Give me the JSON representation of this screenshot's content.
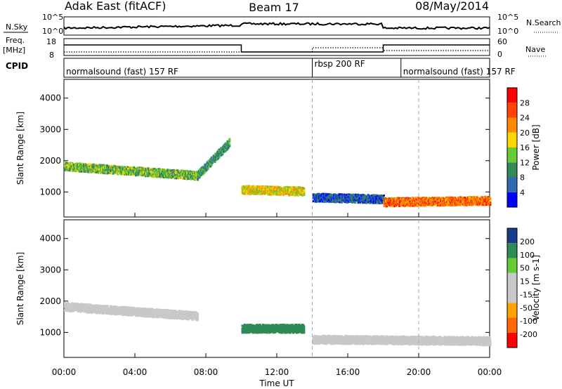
{
  "header": {
    "station": "Adak East (fitACF)",
    "beam": "Beam 17",
    "date": "08/May/2014"
  },
  "strip_labels": {
    "nsky": "N.Sky",
    "nsearch": "N.Search",
    "freq": "Freq.",
    "freq_unit": "[MHz]",
    "nave": "Nave",
    "cpid": "CPID",
    "nsky_ticks": [
      "10^5",
      "10^0"
    ],
    "nsearch_ticks": [
      "10^5",
      "10^0"
    ],
    "freq_ticks": [
      "18",
      "8"
    ],
    "nave_ticks": [
      "60",
      "0"
    ]
  },
  "cpid_segments": [
    {
      "label": "normalsound (fast) 157 RF",
      "start_h": 0,
      "end_h": 14
    },
    {
      "label": "rbsp 200 RF",
      "start_h": 14,
      "end_h": 19
    },
    {
      "label": "normalsound (fast) 157 RF",
      "start_h": 19,
      "end_h": 24
    }
  ],
  "colors": {
    "power_scale": [
      "#0000ff",
      "#2f6ab0",
      "#2e8b57",
      "#66cc33",
      "#ffd700",
      "#ff8c00",
      "#ff4500",
      "#ff0000"
    ],
    "velocity_scale": [
      "#ff0000",
      "#ff6a00",
      "#ffa500",
      "#c8c8c8",
      "#c8c8c8",
      "#66cc33",
      "#2e8b57",
      "#1a3a8c"
    ],
    "grid_dash": "#aaaaaa"
  },
  "chart_data": [
    {
      "type": "heatmap",
      "name": "power",
      "xlabel": "",
      "ylabel": "Slant Range [km]",
      "xlim_hours": [
        0,
        24
      ],
      "ylim": [
        200,
        4600
      ],
      "yticks": [
        "1000",
        "2000",
        "3000",
        "4000"
      ],
      "colorbar": {
        "label": "Power [dB]",
        "ticks": [
          "4",
          "8",
          "12",
          "16",
          "20",
          "24",
          "28"
        ],
        "range": [
          0,
          32
        ]
      },
      "echo_bands": [
        {
          "t_start": 0.0,
          "t_end": 7.5,
          "range_start": 1850,
          "range_end": 1550,
          "value": 13
        },
        {
          "t_start": 7.5,
          "t_end": 9.3,
          "range_start": 1550,
          "range_end": 2600,
          "value": 10
        },
        {
          "t_start": 10.0,
          "t_end": 13.5,
          "range_start": 1100,
          "range_end": 1050,
          "value": 18
        },
        {
          "t_start": 14.0,
          "t_end": 18.0,
          "range_start": 850,
          "range_end": 800,
          "value": 6
        },
        {
          "t_start": 18.0,
          "t_end": 24.0,
          "range_start": 700,
          "range_end": 750,
          "value": 24
        }
      ]
    },
    {
      "type": "heatmap",
      "name": "velocity",
      "xlabel": "Time UT",
      "ylabel": "Slant Range [km]",
      "xlim_hours": [
        0,
        24
      ],
      "ylim": [
        200,
        4600
      ],
      "xticks": [
        "00:00",
        "04:00",
        "08:00",
        "12:00",
        "16:00",
        "20:00",
        "00:00"
      ],
      "yticks": [
        "1000",
        "2000",
        "3000",
        "4000"
      ],
      "colorbar": {
        "label": "Velocity [m s-1]",
        "ticks": [
          "200",
          "100",
          "50",
          "15",
          "-15",
          "-50",
          "-100",
          "-200"
        ]
      },
      "echo_bands": [
        {
          "t_start": 0.0,
          "t_end": 7.5,
          "range_start": 1850,
          "range_end": 1550,
          "value": 0
        },
        {
          "t_start": 10.0,
          "t_end": 13.5,
          "range_start": 1150,
          "range_end": 1150,
          "value": 60
        },
        {
          "t_start": 14.0,
          "t_end": 24.0,
          "range_start": 800,
          "range_end": 750,
          "value": 0
        }
      ]
    }
  ]
}
